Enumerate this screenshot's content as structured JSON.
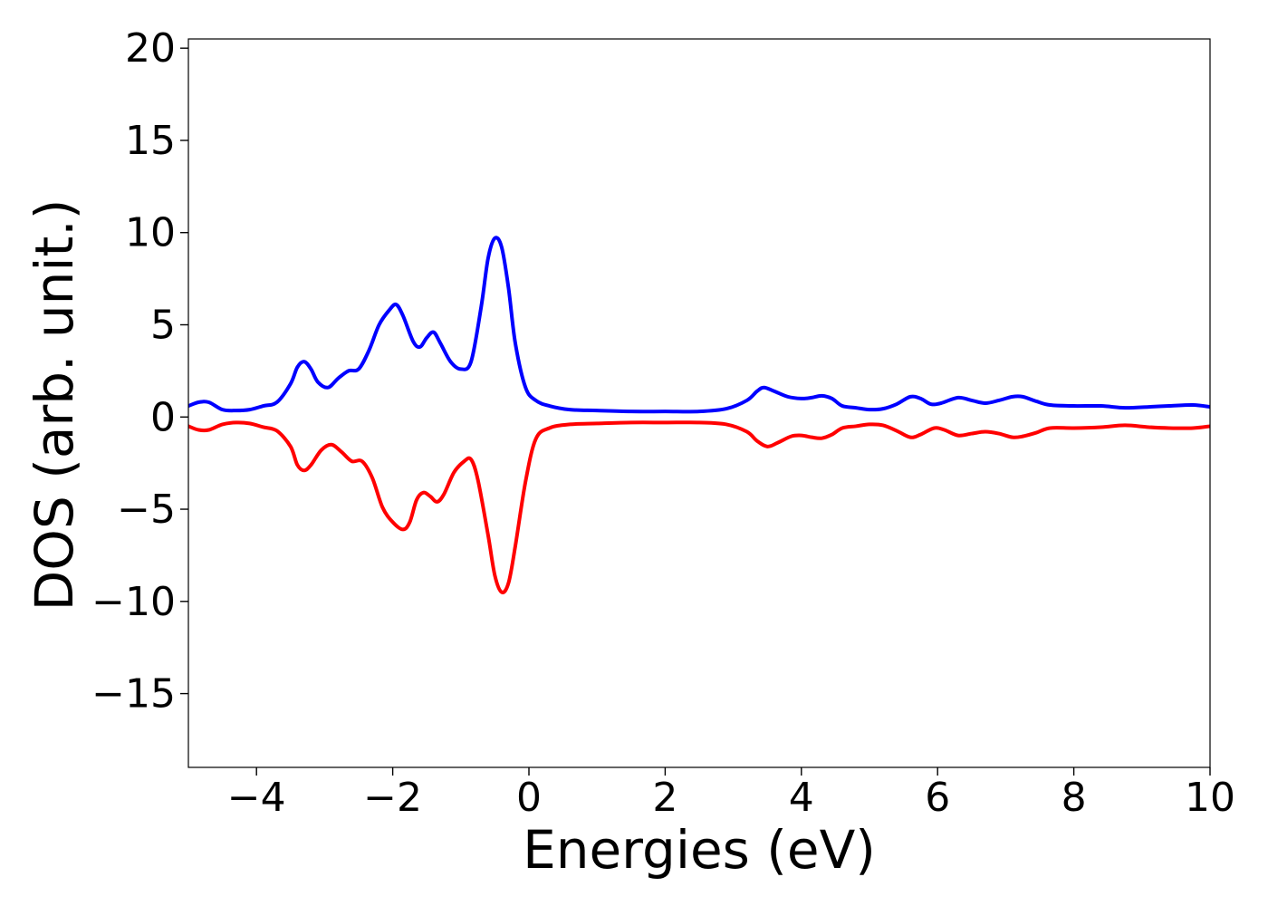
{
  "chart_data": {
    "type": "line",
    "xlabel": "Energies (eV)",
    "ylabel": "DOS (arb. unit.)",
    "xlim": [
      -5,
      10
    ],
    "ylim": [
      -19,
      20.5
    ],
    "xticks": [
      -4,
      -2,
      0,
      2,
      4,
      6,
      8,
      10
    ],
    "xtick_labels": [
      "−4",
      "−2",
      "0",
      "2",
      "4",
      "6",
      "8",
      "10"
    ],
    "yticks": [
      -15,
      -10,
      -5,
      0,
      5,
      10,
      15,
      20
    ],
    "ytick_labels": [
      "−15",
      "−10",
      "−5",
      "0",
      "5",
      "10",
      "15",
      "20"
    ],
    "grid": false,
    "legend": "none",
    "series": [
      {
        "color": "#0000ff",
        "points": [
          [
            -5.0,
            0.6
          ],
          [
            -4.85,
            0.8
          ],
          [
            -4.7,
            0.8
          ],
          [
            -4.5,
            0.4
          ],
          [
            -4.3,
            0.35
          ],
          [
            -4.1,
            0.4
          ],
          [
            -3.9,
            0.6
          ],
          [
            -3.7,
            0.8
          ],
          [
            -3.5,
            1.8
          ],
          [
            -3.4,
            2.7
          ],
          [
            -3.3,
            3.0
          ],
          [
            -3.2,
            2.6
          ],
          [
            -3.1,
            1.9
          ],
          [
            -2.95,
            1.6
          ],
          [
            -2.8,
            2.1
          ],
          [
            -2.65,
            2.5
          ],
          [
            -2.5,
            2.6
          ],
          [
            -2.35,
            3.6
          ],
          [
            -2.2,
            5.0
          ],
          [
            -2.05,
            5.8
          ],
          [
            -1.95,
            6.1
          ],
          [
            -1.85,
            5.5
          ],
          [
            -1.7,
            4.1
          ],
          [
            -1.6,
            3.8
          ],
          [
            -1.5,
            4.3
          ],
          [
            -1.4,
            4.6
          ],
          [
            -1.3,
            4.0
          ],
          [
            -1.15,
            3.0
          ],
          [
            -1.0,
            2.6
          ],
          [
            -0.85,
            3.0
          ],
          [
            -0.7,
            6.0
          ],
          [
            -0.6,
            8.6
          ],
          [
            -0.5,
            9.7
          ],
          [
            -0.4,
            9.2
          ],
          [
            -0.3,
            7.0
          ],
          [
            -0.2,
            4.0
          ],
          [
            -0.05,
            1.6
          ],
          [
            0.1,
            0.9
          ],
          [
            0.3,
            0.6
          ],
          [
            0.6,
            0.4
          ],
          [
            1.0,
            0.35
          ],
          [
            1.5,
            0.3
          ],
          [
            2.0,
            0.3
          ],
          [
            2.5,
            0.3
          ],
          [
            2.9,
            0.45
          ],
          [
            3.2,
            0.9
          ],
          [
            3.35,
            1.4
          ],
          [
            3.45,
            1.6
          ],
          [
            3.6,
            1.4
          ],
          [
            3.8,
            1.1
          ],
          [
            4.0,
            1.0
          ],
          [
            4.15,
            1.05
          ],
          [
            4.3,
            1.15
          ],
          [
            4.45,
            1.0
          ],
          [
            4.6,
            0.6
          ],
          [
            4.8,
            0.5
          ],
          [
            5.0,
            0.4
          ],
          [
            5.2,
            0.45
          ],
          [
            5.4,
            0.7
          ],
          [
            5.6,
            1.1
          ],
          [
            5.75,
            1.0
          ],
          [
            5.9,
            0.7
          ],
          [
            6.05,
            0.75
          ],
          [
            6.3,
            1.05
          ],
          [
            6.5,
            0.9
          ],
          [
            6.7,
            0.75
          ],
          [
            6.9,
            0.9
          ],
          [
            7.1,
            1.1
          ],
          [
            7.25,
            1.1
          ],
          [
            7.45,
            0.85
          ],
          [
            7.65,
            0.65
          ],
          [
            8.0,
            0.6
          ],
          [
            8.4,
            0.6
          ],
          [
            8.75,
            0.5
          ],
          [
            9.1,
            0.55
          ],
          [
            9.4,
            0.6
          ],
          [
            9.75,
            0.65
          ],
          [
            10.0,
            0.55
          ]
        ]
      },
      {
        "color": "#ff0000",
        "points": [
          [
            -5.0,
            -0.5
          ],
          [
            -4.85,
            -0.7
          ],
          [
            -4.7,
            -0.7
          ],
          [
            -4.5,
            -0.4
          ],
          [
            -4.3,
            -0.3
          ],
          [
            -4.1,
            -0.35
          ],
          [
            -3.9,
            -0.55
          ],
          [
            -3.7,
            -0.75
          ],
          [
            -3.5,
            -1.6
          ],
          [
            -3.4,
            -2.6
          ],
          [
            -3.3,
            -2.9
          ],
          [
            -3.2,
            -2.6
          ],
          [
            -3.05,
            -1.8
          ],
          [
            -2.9,
            -1.5
          ],
          [
            -2.75,
            -1.9
          ],
          [
            -2.6,
            -2.4
          ],
          [
            -2.45,
            -2.4
          ],
          [
            -2.3,
            -3.3
          ],
          [
            -2.15,
            -4.9
          ],
          [
            -2.0,
            -5.7
          ],
          [
            -1.85,
            -6.1
          ],
          [
            -1.75,
            -5.7
          ],
          [
            -1.65,
            -4.5
          ],
          [
            -1.55,
            -4.1
          ],
          [
            -1.45,
            -4.3
          ],
          [
            -1.35,
            -4.6
          ],
          [
            -1.25,
            -4.2
          ],
          [
            -1.1,
            -3.0
          ],
          [
            -0.95,
            -2.4
          ],
          [
            -0.85,
            -2.3
          ],
          [
            -0.75,
            -3.4
          ],
          [
            -0.6,
            -6.4
          ],
          [
            -0.5,
            -8.6
          ],
          [
            -0.4,
            -9.5
          ],
          [
            -0.3,
            -9.0
          ],
          [
            -0.2,
            -7.0
          ],
          [
            -0.05,
            -3.5
          ],
          [
            0.1,
            -1.2
          ],
          [
            0.3,
            -0.6
          ],
          [
            0.6,
            -0.4
          ],
          [
            1.0,
            -0.35
          ],
          [
            1.5,
            -0.3
          ],
          [
            2.0,
            -0.3
          ],
          [
            2.5,
            -0.3
          ],
          [
            2.9,
            -0.4
          ],
          [
            3.2,
            -0.8
          ],
          [
            3.35,
            -1.3
          ],
          [
            3.5,
            -1.6
          ],
          [
            3.65,
            -1.4
          ],
          [
            3.85,
            -1.05
          ],
          [
            4.0,
            -1.0
          ],
          [
            4.15,
            -1.1
          ],
          [
            4.3,
            -1.15
          ],
          [
            4.45,
            -0.95
          ],
          [
            4.6,
            -0.6
          ],
          [
            4.8,
            -0.5
          ],
          [
            5.0,
            -0.4
          ],
          [
            5.2,
            -0.45
          ],
          [
            5.4,
            -0.75
          ],
          [
            5.6,
            -1.1
          ],
          [
            5.75,
            -0.95
          ],
          [
            5.95,
            -0.6
          ],
          [
            6.1,
            -0.7
          ],
          [
            6.3,
            -1.0
          ],
          [
            6.5,
            -0.9
          ],
          [
            6.7,
            -0.8
          ],
          [
            6.9,
            -0.9
          ],
          [
            7.1,
            -1.1
          ],
          [
            7.25,
            -1.05
          ],
          [
            7.45,
            -0.85
          ],
          [
            7.65,
            -0.6
          ],
          [
            8.0,
            -0.6
          ],
          [
            8.4,
            -0.55
          ],
          [
            8.75,
            -0.45
          ],
          [
            9.1,
            -0.55
          ],
          [
            9.4,
            -0.6
          ],
          [
            9.75,
            -0.6
          ],
          [
            10.0,
            -0.5
          ]
        ]
      }
    ]
  }
}
